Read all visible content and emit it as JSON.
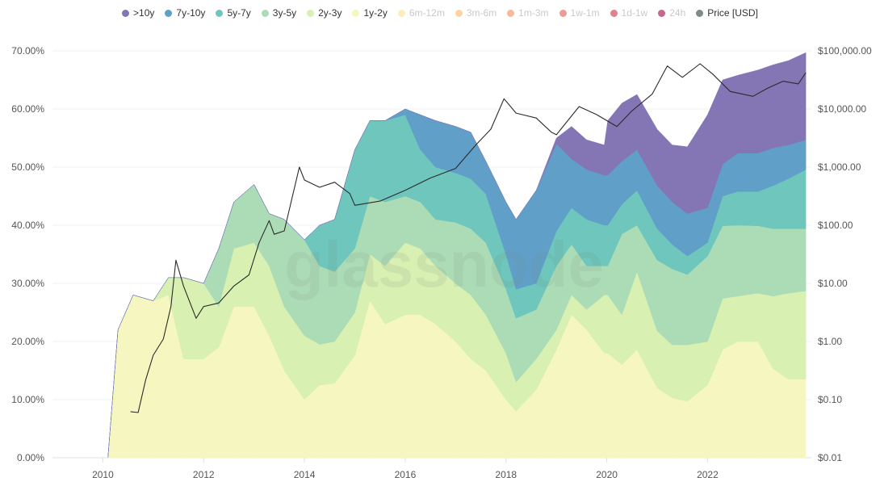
{
  "chart_data": {
    "type": "area",
    "stacked": true,
    "watermark": "glassnode",
    "legend_position": "top",
    "grid": true,
    "x": [
      2010.1,
      2010.3,
      2010.6,
      2011.0,
      2011.3,
      2011.6,
      2012.0,
      2012.3,
      2012.6,
      2013.0,
      2013.3,
      2013.6,
      2014.0,
      2014.3,
      2014.6,
      2015.0,
      2015.3,
      2015.6,
      2016.0,
      2016.3,
      2016.6,
      2017.0,
      2017.3,
      2017.6,
      2018.0,
      2018.2,
      2018.6,
      2019.0,
      2019.3,
      2019.6,
      2019.95,
      2020.02,
      2020.3,
      2020.6,
      2021.0,
      2021.3,
      2021.6,
      2022.0,
      2022.3,
      2022.6,
      2023.0,
      2023.3,
      2023.6,
      2023.95
    ],
    "series": [
      {
        "name": "1y-2y",
        "color": "#f6f7c0",
        "values": [
          0,
          22,
          28,
          27,
          28,
          17,
          17,
          19,
          26,
          26,
          21,
          15,
          10,
          12.5,
          12.8,
          17.6,
          27,
          23,
          24.6,
          24.6,
          23,
          20,
          17,
          15,
          10,
          8,
          11.7,
          18.6,
          24.6,
          22,
          18,
          18,
          16,
          18.6,
          12,
          10.3,
          9.7,
          12.5,
          18.6,
          20,
          20,
          15.3,
          13.5,
          13.5
        ]
      },
      {
        "name": "2y-3y",
        "color": "#d8f0b2",
        "values": [
          0,
          0,
          0,
          0,
          3,
          14,
          13,
          7,
          10,
          11,
          12,
          11,
          11,
          7,
          7.2,
          7.4,
          8,
          10,
          12.4,
          11.4,
          10,
          10,
          11,
          9.6,
          8,
          5,
          5.3,
          3.4,
          3.4,
          3.5,
          10,
          10,
          8.6,
          13.4,
          9.8,
          9.1,
          9.7,
          7.5,
          8.8,
          7.8,
          8.3,
          12.5,
          14.8,
          15.2
        ]
      },
      {
        "name": "3y-5y",
        "color": "#acdcb6",
        "values": [
          0,
          0,
          0,
          0,
          0,
          0,
          0,
          10,
          8,
          10,
          9,
          15,
          16.5,
          13.5,
          12,
          11,
          10,
          11,
          8,
          8,
          8,
          10.5,
          11.4,
          12.4,
          11,
          11,
          8.5,
          11,
          8.7,
          7.5,
          5,
          5,
          13.9,
          8,
          12.2,
          13.1,
          12.1,
          14.7,
          12.5,
          12.2,
          11.6,
          11.6,
          11.1,
          10.7
        ]
      },
      {
        "name": "5y-7y",
        "color": "#6ec6bd",
        "values": [
          0,
          0,
          0,
          0,
          0,
          0,
          0,
          0,
          0,
          0,
          0,
          0,
          0,
          7,
          9,
          17,
          13,
          14,
          14,
          9,
          9,
          8.5,
          8.6,
          8.4,
          6,
          5,
          4.5,
          6,
          6.3,
          8,
          7,
          7,
          5.1,
          6,
          5.4,
          4.2,
          3.2,
          2.3,
          5.1,
          5.8,
          5.9,
          7.4,
          8.6,
          10.2
        ]
      },
      {
        "name": "7y-10y",
        "color": "#5f9fc8",
        "values": [
          0,
          0,
          0,
          0,
          0,
          0,
          0,
          0,
          0,
          0,
          0,
          0,
          0,
          0,
          0,
          0,
          0,
          0,
          1,
          6,
          8,
          8,
          8,
          5.6,
          9,
          12,
          16,
          15,
          8.4,
          8.6,
          8.6,
          8.6,
          7.4,
          7,
          7.4,
          7.3,
          7.3,
          6,
          5.5,
          6.6,
          6.6,
          6.5,
          5.8,
          5.1
        ]
      },
      {
        "name": ">10y",
        "color": "#8476b5",
        "values": [
          0,
          0,
          0,
          0,
          0,
          0,
          0,
          0,
          0,
          0,
          0,
          0,
          0,
          0,
          0,
          0,
          0,
          0,
          0,
          0,
          0,
          0,
          0,
          0,
          0,
          0,
          0,
          1,
          5.6,
          5.1,
          5.2,
          9.4,
          10,
          9.5,
          9.7,
          9.8,
          11.5,
          16,
          14.5,
          13.4,
          14.3,
          14.3,
          14.5,
          15
        ]
      }
    ],
    "inactive_series": [
      {
        "name": "6m-12m",
        "color": "#fbe18e"
      },
      {
        "name": "3m-6m",
        "color": "#f9b868"
      },
      {
        "name": "1m-3m",
        "color": "#f48b5a"
      },
      {
        "name": "1w-1m",
        "color": "#e05a4b"
      },
      {
        "name": "1d-1w",
        "color": "#c7303f"
      },
      {
        "name": "24h",
        "color": "#9e0142"
      }
    ],
    "price": {
      "name": "Price [USD]",
      "color": "#808a86",
      "line_color": "#2b2b2b",
      "axis": "right",
      "scale": "log",
      "x": [
        2010.55,
        2010.7,
        2010.85,
        2011.0,
        2011.2,
        2011.35,
        2011.45,
        2011.6,
        2011.85,
        2012.0,
        2012.3,
        2012.6,
        2012.9,
        2013.1,
        2013.3,
        2013.4,
        2013.6,
        2013.9,
        2014.0,
        2014.3,
        2014.6,
        2014.9,
        2015.0,
        2015.5,
        2016.0,
        2016.5,
        2017.0,
        2017.4,
        2017.7,
        2017.96,
        2018.2,
        2018.6,
        2018.9,
        2019.0,
        2019.45,
        2019.8,
        2020.2,
        2020.5,
        2020.9,
        2021.2,
        2021.5,
        2021.85,
        2022.1,
        2022.45,
        2022.9,
        2023.2,
        2023.5,
        2023.8,
        2023.95
      ],
      "values": [
        0.062,
        0.06,
        0.22,
        0.58,
        1.1,
        4,
        25,
        9,
        2.5,
        4,
        4.6,
        9,
        14,
        50,
        120,
        70,
        80,
        1000,
        600,
        450,
        550,
        350,
        220,
        260,
        400,
        650,
        950,
        2400,
        4500,
        15000,
        8500,
        7000,
        4000,
        3600,
        11000,
        8000,
        5000,
        9300,
        18000,
        55000,
        35000,
        60000,
        40000,
        20000,
        16500,
        23000,
        30000,
        27000,
        42000
      ]
    },
    "xlim": [
      2009.0,
      2023.98
    ],
    "ylim": [
      0,
      70
    ],
    "y2lim": [
      0.01,
      100000
    ],
    "x_ticks": [
      "2010",
      "2012",
      "2014",
      "2016",
      "2018",
      "2020",
      "2022"
    ],
    "x_tick_values": [
      2010,
      2012,
      2014,
      2016,
      2018,
      2020,
      2022
    ],
    "y_ticks": [
      "0.00%",
      "10.00%",
      "20.00%",
      "30.00%",
      "40.00%",
      "50.00%",
      "60.00%",
      "70.00%"
    ],
    "y_tick_values": [
      0,
      10,
      20,
      30,
      40,
      50,
      60,
      70
    ],
    "y2_ticks": [
      "$0.01",
      "$0.10",
      "$1.00",
      "$10.00",
      "$100.00",
      "$1,000.00",
      "$10,000.00",
      "$100,000.00"
    ],
    "y2_tick_values": [
      0.01,
      0.1,
      1,
      10,
      100,
      1000,
      10000,
      100000
    ]
  }
}
